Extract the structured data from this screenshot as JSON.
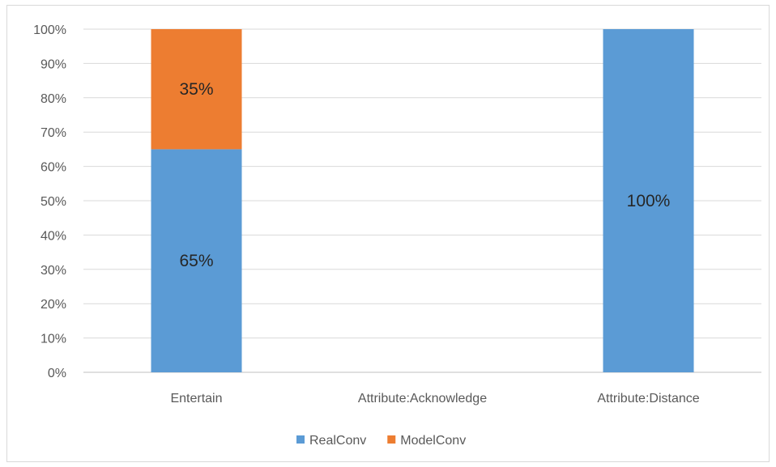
{
  "chart_data": {
    "type": "bar",
    "stacked": true,
    "categories": [
      "Entertain",
      "Attribute:Acknowledge",
      "Attribute:Distance"
    ],
    "series": [
      {
        "name": "RealConv",
        "values": [
          65,
          0,
          100
        ],
        "labels": [
          "65%",
          "",
          "100%"
        ],
        "color": "#5b9bd5"
      },
      {
        "name": "ModelConv",
        "values": [
          35,
          0,
          0
        ],
        "labels": [
          "35%",
          "",
          ""
        ],
        "color": "#ed7d31"
      }
    ],
    "ylim": [
      0,
      100
    ],
    "yticks": [
      "0%",
      "10%",
      "20%",
      "30%",
      "40%",
      "50%",
      "60%",
      "70%",
      "80%",
      "90%",
      "100%"
    ],
    "grid": true,
    "legend": "bottom"
  }
}
